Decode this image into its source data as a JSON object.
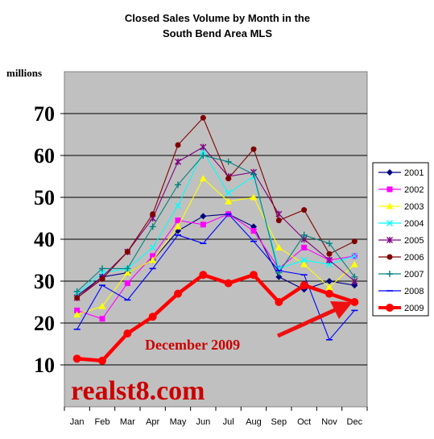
{
  "chart_data": {
    "type": "line",
    "title": "Closed Sales Volume by Month in the",
    "subtitle": "South Bend Area MLS",
    "ylabel": "millions",
    "ylim": [
      0,
      80
    ],
    "yticks": [
      10,
      20,
      30,
      40,
      50,
      60,
      70
    ],
    "grid": true,
    "legend_position": "right",
    "categories": [
      "Jan",
      "Feb",
      "Mar",
      "Apr",
      "May",
      "Jun",
      "Jul",
      "Aug",
      "Sep",
      "Oct",
      "Nov",
      "Dec"
    ],
    "series": [
      {
        "name": "2001",
        "color": "#000080",
        "marker": "diamond",
        "values": [
          26.5,
          31,
          32,
          35,
          42,
          45.5,
          46,
          43,
          31,
          28,
          30,
          29
        ]
      },
      {
        "name": "2002",
        "color": "#ff00ff",
        "marker": "square",
        "values": [
          23,
          21,
          29.5,
          36,
          44.5,
          43.5,
          46,
          42,
          33,
          38,
          35,
          36
        ]
      },
      {
        "name": "2003",
        "color": "#ffff00",
        "marker": "triangle",
        "values": [
          22,
          24,
          32,
          35,
          43,
          54.5,
          49,
          50,
          38,
          34,
          28.5,
          34
        ]
      },
      {
        "name": "2004",
        "color": "#00ffff",
        "marker": "x",
        "values": [
          27,
          32,
          33,
          38,
          48,
          61,
          51,
          55,
          33,
          35,
          34,
          36
        ]
      },
      {
        "name": "2005",
        "color": "#800080",
        "marker": "star",
        "values": [
          26,
          31,
          37,
          45,
          58.5,
          62,
          55,
          56,
          46,
          40,
          35,
          30
        ]
      },
      {
        "name": "2006",
        "color": "#800000",
        "marker": "circle",
        "values": [
          26,
          30.5,
          37,
          46,
          62.5,
          69,
          54.5,
          61.5,
          44.5,
          47,
          36.5,
          39.5
        ]
      },
      {
        "name": "2007",
        "color": "#008080",
        "marker": "plus",
        "values": [
          27.5,
          33,
          33,
          43,
          53,
          60,
          58.5,
          55.5,
          32,
          41,
          39,
          31
        ]
      },
      {
        "name": "2008",
        "color": "#0000ff",
        "marker": "dash",
        "values": [
          18.5,
          29,
          25.5,
          33,
          41,
          39,
          46,
          39.5,
          32.5,
          31.5,
          16,
          23
        ]
      },
      {
        "name": "2009",
        "color": "#ff0000",
        "marker": "circle-large",
        "values": [
          11.5,
          11,
          17.5,
          21.5,
          27,
          31.5,
          29.5,
          31.5,
          25,
          29,
          27,
          25
        ]
      }
    ],
    "annotations": [
      {
        "text": "December 2009",
        "color": "#cc0000"
      },
      {
        "text": "realst8.com",
        "color": "#cc0000"
      }
    ],
    "plot_background": "#c0c0c0"
  }
}
